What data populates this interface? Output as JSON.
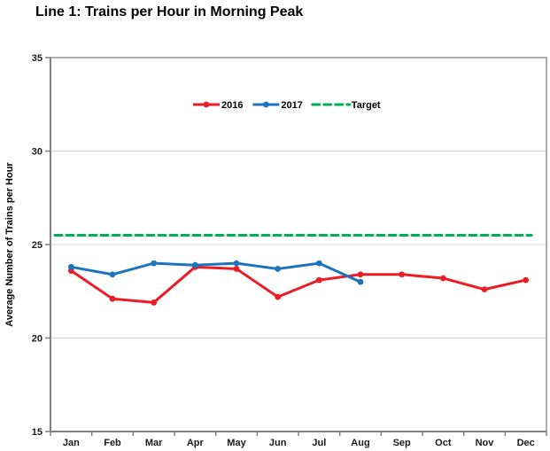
{
  "window": {
    "background": "#FFFFFF"
  },
  "chart_data": {
    "type": "line",
    "title": "Line 1: Trains per Hour in Morning Peak",
    "xlabel": "",
    "ylabel": "Average Number of Trains per Hour",
    "categories": [
      "Jan",
      "Feb",
      "Mar",
      "Apr",
      "May",
      "Jun",
      "Jul",
      "Aug",
      "Sep",
      "Oct",
      "Nov",
      "Dec"
    ],
    "ylim": [
      15,
      35
    ],
    "yticks": [
      15,
      20,
      25,
      30,
      35
    ],
    "grid": "horizontal",
    "legend_position": "top-center-inside",
    "series": [
      {
        "name": "2016",
        "color": "#ED1C24",
        "style": "solid",
        "values": [
          23.6,
          22.1,
          21.9,
          23.8,
          23.7,
          22.2,
          23.1,
          23.4,
          23.4,
          23.2,
          22.6,
          23.1
        ]
      },
      {
        "name": "2017",
        "color": "#1C75BC",
        "style": "solid",
        "values": [
          23.8,
          23.4,
          24.0,
          23.9,
          24.0,
          23.7,
          24.0,
          23.0,
          null,
          null,
          null,
          null
        ]
      },
      {
        "name": "Target",
        "color": "#00B050",
        "style": "dashed",
        "values": [
          25.5,
          25.5,
          25.5,
          25.5,
          25.5,
          25.5,
          25.5,
          25.5,
          25.5,
          25.5,
          25.5,
          25.5
        ]
      }
    ],
    "colors": {
      "axis": "#808080",
      "gridline": "#D9D9D9",
      "tick_label": "#1A1A1A",
      "legend_text": "#000000"
    }
  }
}
